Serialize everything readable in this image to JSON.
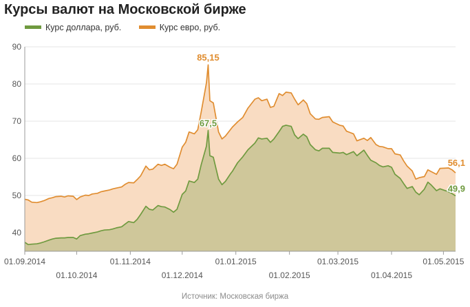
{
  "title": "Курсы валют на Московской бирже",
  "source": "Источник: Московская биржа",
  "colors": {
    "usd_line": "#6f9a3f",
    "usd_fill": "#cfc79a",
    "eur_line": "#e08d30",
    "eur_fill": "#f9dcc2",
    "grid": "#e6e6e6",
    "axis": "#9a9a9a"
  },
  "chart_data": {
    "type": "area",
    "x_unit": "date",
    "x_range": [
      "2014-09-01",
      "2015-05-08"
    ],
    "ylim": [
      35,
      90
    ],
    "yticks": [
      40,
      50,
      60,
      70,
      80,
      90
    ],
    "grid": true,
    "legend_position": "top-left",
    "xticks": [
      {
        "date": "2014-09-01",
        "label": "01.09.2014",
        "row": 1
      },
      {
        "date": "2014-10-01",
        "label": "01.10.2014",
        "row": 2
      },
      {
        "date": "2014-11-01",
        "label": "01.11.2014",
        "row": 1
      },
      {
        "date": "2014-12-01",
        "label": "01.12.2014",
        "row": 2
      },
      {
        "date": "2015-01-01",
        "label": "01.01.2015",
        "row": 1
      },
      {
        "date": "2015-02-01",
        "label": "01.02.2015",
        "row": 2
      },
      {
        "date": "2015-03-01",
        "label": "01.03.2015",
        "row": 1
      },
      {
        "date": "2015-04-01",
        "label": "01.04.2015",
        "row": 2
      },
      {
        "date": "2015-05-01",
        "label": "01.05.2015",
        "row": 1
      }
    ],
    "annotations": [
      {
        "series": "eur",
        "date": "2014-12-16",
        "value": 85.15,
        "text": "85,15"
      },
      {
        "series": "usd",
        "date": "2014-12-16",
        "value": 67.5,
        "text": "67,5"
      },
      {
        "series": "eur",
        "date": "2015-05-08",
        "value": 56.1,
        "text": "56,1"
      },
      {
        "series": "usd",
        "date": "2015-05-08",
        "value": 49.9,
        "text": "49,9"
      }
    ],
    "series": [
      {
        "id": "eur",
        "name": "Курс евро, руб.",
        "points": [
          [
            "2014-09-01",
            49.0
          ],
          [
            "2014-09-03",
            48.8
          ],
          [
            "2014-09-05",
            48.2
          ],
          [
            "2014-09-08",
            48.1
          ],
          [
            "2014-09-10",
            48.3
          ],
          [
            "2014-09-12",
            48.6
          ],
          [
            "2014-09-15",
            49.2
          ],
          [
            "2014-09-17",
            49.4
          ],
          [
            "2014-09-19",
            49.7
          ],
          [
            "2014-09-22",
            49.8
          ],
          [
            "2014-09-24",
            49.6
          ],
          [
            "2014-09-26",
            49.9
          ],
          [
            "2014-09-29",
            49.8
          ],
          [
            "2014-10-01",
            48.9
          ],
          [
            "2014-10-03",
            49.6
          ],
          [
            "2014-10-06",
            50.1
          ],
          [
            "2014-10-08",
            50.0
          ],
          [
            "2014-10-10",
            50.4
          ],
          [
            "2014-10-13",
            50.6
          ],
          [
            "2014-10-15",
            51.0
          ],
          [
            "2014-10-17",
            51.2
          ],
          [
            "2014-10-20",
            51.5
          ],
          [
            "2014-10-22",
            51.8
          ],
          [
            "2014-10-24",
            52.0
          ],
          [
            "2014-10-27",
            52.3
          ],
          [
            "2014-10-29",
            53.0
          ],
          [
            "2014-10-31",
            53.5
          ],
          [
            "2014-11-03",
            53.4
          ],
          [
            "2014-11-05",
            54.3
          ],
          [
            "2014-11-07",
            55.3
          ],
          [
            "2014-11-10",
            57.9
          ],
          [
            "2014-11-12",
            56.9
          ],
          [
            "2014-11-14",
            57.1
          ],
          [
            "2014-11-17",
            58.4
          ],
          [
            "2014-11-19",
            58.1
          ],
          [
            "2014-11-21",
            58.4
          ],
          [
            "2014-11-24",
            57.6
          ],
          [
            "2014-11-26",
            57.2
          ],
          [
            "2014-11-28",
            58.4
          ],
          [
            "2014-12-01",
            63.0
          ],
          [
            "2014-12-03",
            64.3
          ],
          [
            "2014-12-05",
            67.1
          ],
          [
            "2014-12-08",
            66.6
          ],
          [
            "2014-12-10",
            67.7
          ],
          [
            "2014-12-12",
            72.5
          ],
          [
            "2014-12-15",
            80.3
          ],
          [
            "2014-12-16",
            85.15
          ],
          [
            "2014-12-17",
            75.5
          ],
          [
            "2014-12-19",
            74.9
          ],
          [
            "2014-12-22",
            67.1
          ],
          [
            "2014-12-24",
            65.2
          ],
          [
            "2014-12-26",
            66.0
          ],
          [
            "2014-12-29",
            67.8
          ],
          [
            "2014-12-30",
            68.4
          ],
          [
            "2015-01-02",
            69.8
          ],
          [
            "2015-01-05",
            71.0
          ],
          [
            "2015-01-08",
            73.5
          ],
          [
            "2015-01-12",
            75.9
          ],
          [
            "2015-01-14",
            76.3
          ],
          [
            "2015-01-16",
            75.5
          ],
          [
            "2015-01-19",
            75.9
          ],
          [
            "2015-01-21",
            73.7
          ],
          [
            "2015-01-23",
            74.0
          ],
          [
            "2015-01-26",
            77.4
          ],
          [
            "2015-01-28",
            76.9
          ],
          [
            "2015-01-30",
            77.8
          ],
          [
            "2015-02-02",
            77.6
          ],
          [
            "2015-02-04",
            75.9
          ],
          [
            "2015-02-06",
            74.4
          ],
          [
            "2015-02-09",
            75.7
          ],
          [
            "2015-02-11",
            74.7
          ],
          [
            "2015-02-13",
            72.0
          ],
          [
            "2015-02-16",
            70.6
          ],
          [
            "2015-02-18",
            70.5
          ],
          [
            "2015-02-20",
            71.0
          ],
          [
            "2015-02-24",
            71.2
          ],
          [
            "2015-02-26",
            69.8
          ],
          [
            "2015-03-02",
            68.9
          ],
          [
            "2015-03-04",
            68.7
          ],
          [
            "2015-03-06",
            67.3
          ],
          [
            "2015-03-10",
            66.6
          ],
          [
            "2015-03-12",
            64.7
          ],
          [
            "2015-03-16",
            65.4
          ],
          [
            "2015-03-18",
            64.8
          ],
          [
            "2015-03-20",
            65.6
          ],
          [
            "2015-03-23",
            63.7
          ],
          [
            "2015-03-25",
            63.2
          ],
          [
            "2015-03-27",
            63.1
          ],
          [
            "2015-03-30",
            62.6
          ],
          [
            "2015-04-01",
            62.6
          ],
          [
            "2015-04-03",
            61.2
          ],
          [
            "2015-04-06",
            60.9
          ],
          [
            "2015-04-08",
            59.3
          ],
          [
            "2015-04-10",
            57.9
          ],
          [
            "2015-04-13",
            56.6
          ],
          [
            "2015-04-15",
            54.4
          ],
          [
            "2015-04-17",
            54.8
          ],
          [
            "2015-04-20",
            55.1
          ],
          [
            "2015-04-22",
            56.9
          ],
          [
            "2015-04-24",
            56.4
          ],
          [
            "2015-04-27",
            55.7
          ],
          [
            "2015-04-29",
            57.3
          ],
          [
            "2015-05-04",
            57.4
          ],
          [
            "2015-05-06",
            56.9
          ],
          [
            "2015-05-08",
            56.1
          ]
        ]
      },
      {
        "id": "usd",
        "name": "Курс доллара, руб.",
        "points": [
          [
            "2014-09-01",
            37.4
          ],
          [
            "2014-09-03",
            36.8
          ],
          [
            "2014-09-05",
            36.9
          ],
          [
            "2014-09-08",
            37.0
          ],
          [
            "2014-09-10",
            37.2
          ],
          [
            "2014-09-12",
            37.5
          ],
          [
            "2014-09-15",
            38.0
          ],
          [
            "2014-09-17",
            38.3
          ],
          [
            "2014-09-19",
            38.5
          ],
          [
            "2014-09-22",
            38.6
          ],
          [
            "2014-09-24",
            38.6
          ],
          [
            "2014-09-26",
            38.7
          ],
          [
            "2014-09-29",
            38.7
          ],
          [
            "2014-10-01",
            38.3
          ],
          [
            "2014-10-03",
            39.2
          ],
          [
            "2014-10-06",
            39.6
          ],
          [
            "2014-10-08",
            39.7
          ],
          [
            "2014-10-10",
            39.9
          ],
          [
            "2014-10-13",
            40.2
          ],
          [
            "2014-10-15",
            40.5
          ],
          [
            "2014-10-17",
            40.7
          ],
          [
            "2014-10-20",
            40.8
          ],
          [
            "2014-10-22",
            41.0
          ],
          [
            "2014-10-24",
            41.3
          ],
          [
            "2014-10-27",
            41.6
          ],
          [
            "2014-10-29",
            42.3
          ],
          [
            "2014-10-31",
            43.0
          ],
          [
            "2014-11-03",
            42.7
          ],
          [
            "2014-11-05",
            43.6
          ],
          [
            "2014-11-07",
            44.9
          ],
          [
            "2014-11-10",
            47.1
          ],
          [
            "2014-11-12",
            46.3
          ],
          [
            "2014-11-14",
            46.1
          ],
          [
            "2014-11-17",
            47.3
          ],
          [
            "2014-11-19",
            47.0
          ],
          [
            "2014-11-21",
            46.9
          ],
          [
            "2014-11-24",
            46.2
          ],
          [
            "2014-11-26",
            45.5
          ],
          [
            "2014-11-28",
            46.3
          ],
          [
            "2014-12-01",
            50.3
          ],
          [
            "2014-12-03",
            51.2
          ],
          [
            "2014-12-05",
            53.9
          ],
          [
            "2014-12-08",
            53.5
          ],
          [
            "2014-12-10",
            54.4
          ],
          [
            "2014-12-12",
            58.3
          ],
          [
            "2014-12-15",
            63.3
          ],
          [
            "2014-12-16",
            67.5
          ],
          [
            "2014-12-17",
            60.7
          ],
          [
            "2014-12-19",
            60.3
          ],
          [
            "2014-12-22",
            54.4
          ],
          [
            "2014-12-24",
            52.9
          ],
          [
            "2014-12-26",
            53.8
          ],
          [
            "2014-12-29",
            55.9
          ],
          [
            "2014-12-30",
            56.5
          ],
          [
            "2015-01-02",
            58.8
          ],
          [
            "2015-01-05",
            60.4
          ],
          [
            "2015-01-08",
            62.3
          ],
          [
            "2015-01-12",
            64.1
          ],
          [
            "2015-01-14",
            65.5
          ],
          [
            "2015-01-16",
            65.2
          ],
          [
            "2015-01-19",
            65.4
          ],
          [
            "2015-01-21",
            64.3
          ],
          [
            "2015-01-23",
            65.2
          ],
          [
            "2015-01-26",
            67.2
          ],
          [
            "2015-01-28",
            68.6
          ],
          [
            "2015-01-30",
            68.9
          ],
          [
            "2015-02-02",
            68.6
          ],
          [
            "2015-02-04",
            66.3
          ],
          [
            "2015-02-06",
            65.3
          ],
          [
            "2015-02-09",
            66.5
          ],
          [
            "2015-02-11",
            65.8
          ],
          [
            "2015-02-13",
            63.7
          ],
          [
            "2015-02-16",
            62.3
          ],
          [
            "2015-02-18",
            62.0
          ],
          [
            "2015-02-20",
            62.7
          ],
          [
            "2015-02-24",
            62.7
          ],
          [
            "2015-02-26",
            61.6
          ],
          [
            "2015-03-02",
            61.4
          ],
          [
            "2015-03-04",
            61.6
          ],
          [
            "2015-03-06",
            61.0
          ],
          [
            "2015-03-10",
            61.8
          ],
          [
            "2015-03-12",
            60.7
          ],
          [
            "2015-03-16",
            62.2
          ],
          [
            "2015-03-18",
            60.8
          ],
          [
            "2015-03-20",
            59.5
          ],
          [
            "2015-03-23",
            58.8
          ],
          [
            "2015-03-25",
            58.1
          ],
          [
            "2015-03-27",
            57.7
          ],
          [
            "2015-03-30",
            58.0
          ],
          [
            "2015-04-01",
            57.6
          ],
          [
            "2015-04-03",
            55.7
          ],
          [
            "2015-04-06",
            54.6
          ],
          [
            "2015-04-08",
            53.2
          ],
          [
            "2015-04-10",
            51.9
          ],
          [
            "2015-04-13",
            52.4
          ],
          [
            "2015-04-15",
            50.9
          ],
          [
            "2015-04-17",
            50.2
          ],
          [
            "2015-04-20",
            51.7
          ],
          [
            "2015-04-22",
            53.6
          ],
          [
            "2015-04-24",
            52.8
          ],
          [
            "2015-04-27",
            51.3
          ],
          [
            "2015-04-29",
            51.8
          ],
          [
            "2015-05-04",
            51.0
          ],
          [
            "2015-05-06",
            50.5
          ],
          [
            "2015-05-08",
            49.9
          ]
        ]
      }
    ]
  }
}
